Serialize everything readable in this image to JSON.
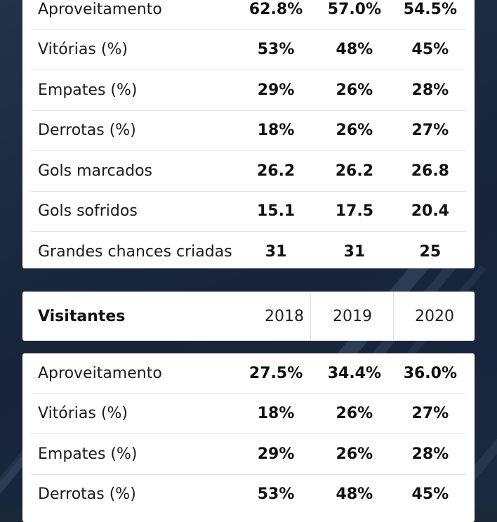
{
  "home_table": {
    "rows": [
      {
        "label": "Aproveitamento",
        "values": [
          "62.8%",
          "57.0%",
          "54.5%"
        ]
      },
      {
        "label": "Vitórias (%)",
        "values": [
          "53%",
          "48%",
          "45%"
        ]
      },
      {
        "label": "Empates (%)",
        "values": [
          "29%",
          "26%",
          "28%"
        ]
      },
      {
        "label": "Derrotas (%)",
        "values": [
          "18%",
          "26%",
          "27%"
        ]
      },
      {
        "label": "Gols marcados",
        "values": [
          "26.2",
          "26.2",
          "26.8"
        ]
      },
      {
        "label": "Gols sofridos",
        "values": [
          "15.1",
          "17.5",
          "20.4"
        ]
      },
      {
        "label": "Grandes chances criadas",
        "values": [
          "31",
          "31",
          "25"
        ]
      }
    ]
  },
  "away_header": {
    "title": "Visitantes",
    "years": [
      "2018",
      "2019",
      "2020"
    ]
  },
  "away_table": {
    "rows": [
      {
        "label": "Aproveitamento",
        "values": [
          "27.5%",
          "34.4%",
          "36.0%"
        ]
      },
      {
        "label": "Vitórias (%)",
        "values": [
          "18%",
          "26%",
          "27%"
        ]
      },
      {
        "label": "Empates (%)",
        "values": [
          "29%",
          "26%",
          "28%"
        ]
      },
      {
        "label": "Derrotas (%)",
        "values": [
          "53%",
          "48%",
          "45%"
        ]
      }
    ]
  }
}
